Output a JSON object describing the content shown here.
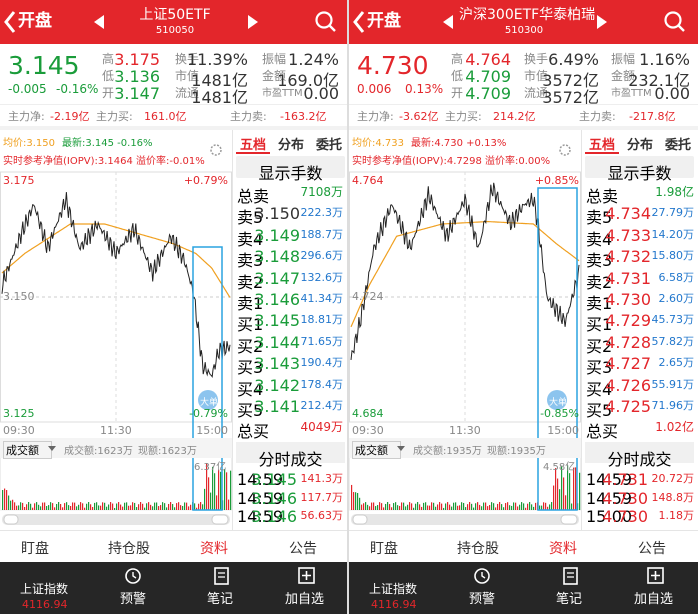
{
  "panels": [
    {
      "header": {
        "button": "开盘",
        "title": "上证50ETF",
        "code": "510050"
      },
      "quote": {
        "price": "3.145",
        "change": "-0.005",
        "percent": "-0.16%"
      },
      "stats": [
        [
          {
            "label": "高",
            "value": "3.175"
          },
          {
            "label": "换手",
            "value": "11.39%"
          },
          {
            "label": "振幅",
            "value": "1.24%"
          }
        ],
        [
          {
            "label": "低",
            "value": "3.136"
          },
          {
            "label": "市值",
            "value": "1481亿"
          },
          {
            "label": "金额",
            "value": "169.0亿"
          }
        ],
        [
          {
            "label": "开",
            "value": "3.147"
          },
          {
            "label": "流通",
            "value": "1481亿"
          },
          {
            "label": "市盈TTM",
            "value": "0.00"
          }
        ]
      ],
      "flows": [
        {
          "label": "主力净:",
          "value": "-2.19亿"
        },
        {
          "label": "主力买:",
          "value": "161.0亿"
        },
        {
          "label": "主力卖:",
          "value": "-163.2亿"
        }
      ],
      "info": {
        "avg": "均价:3.150",
        "latest": "最新:3.145 -0.16%",
        "iopv": "实时参考净值(IOPV):3.1464",
        "premium": "溢价率:-0.01%"
      },
      "chart_labels": {
        "high": "3.175",
        "high_pct": "+0.79%",
        "mid": "3.150",
        "low": "3.125",
        "low_pct": "-0.79%",
        "times": [
          "09:30",
          "11:30",
          "15:00"
        ],
        "badge": "大单"
      },
      "volume": {
        "selector": "成交额",
        "amount": "成交额:1623万",
        "current": "现额:1623万",
        "max": "6.37亿"
      },
      "tabs": [
        "五档",
        "分布",
        "委托"
      ],
      "toggle": "显示手数",
      "book": {
        "total_sell": {
          "label": "总卖",
          "value": "7108万"
        },
        "levels": [
          {
            "label": "卖5",
            "price": "3.150",
            "volume": "222.3万"
          },
          {
            "label": "卖4",
            "price": "3.149",
            "volume": "188.7万"
          },
          {
            "label": "卖3",
            "price": "3.148",
            "volume": "296.6万"
          },
          {
            "label": "卖2",
            "price": "3.147",
            "volume": "132.6万"
          },
          {
            "label": "卖1",
            "price": "3.146",
            "volume": "41.34万"
          },
          {
            "label": "买1",
            "price": "3.145",
            "volume": "18.81万"
          },
          {
            "label": "买2",
            "price": "3.144",
            "volume": "71.65万"
          },
          {
            "label": "买3",
            "price": "3.143",
            "volume": "190.4万"
          },
          {
            "label": "买4",
            "price": "3.142",
            "volume": "178.4万"
          },
          {
            "label": "买5",
            "price": "3.141",
            "volume": "212.4万"
          }
        ],
        "total_buy": {
          "label": "总买",
          "value": "4049万"
        }
      },
      "trades_title": "分时成交",
      "trades": [
        {
          "time": "14:59",
          "price": "3.145",
          "volume": "141.3万"
        },
        {
          "time": "14:59",
          "price": "3.146",
          "volume": "117.7万"
        },
        {
          "time": "14:59",
          "price": "3.146",
          "volume": "56.63万"
        }
      ]
    },
    {
      "header": {
        "button": "开盘",
        "title": "沪深300ETF华泰柏瑞",
        "code": "510300"
      },
      "quote": {
        "price": "4.730",
        "change": "0.006",
        "percent": "0.13%"
      },
      "stats": [
        [
          {
            "label": "高",
            "value": "4.764"
          },
          {
            "label": "换手",
            "value": "6.49%"
          },
          {
            "label": "振幅",
            "value": "1.16%"
          }
        ],
        [
          {
            "label": "低",
            "value": "4.709"
          },
          {
            "label": "市值",
            "value": "3572亿"
          },
          {
            "label": "金额",
            "value": "232.1亿"
          }
        ],
        [
          {
            "label": "开",
            "value": "4.709"
          },
          {
            "label": "流通",
            "value": "3572亿"
          },
          {
            "label": "市盈TTM",
            "value": "0.00"
          }
        ]
      ],
      "flows": [
        {
          "label": "主力净:",
          "value": "-3.62亿"
        },
        {
          "label": "主力买:",
          "value": "214.2亿"
        },
        {
          "label": "主力卖:",
          "value": "-217.8亿"
        }
      ],
      "info": {
        "avg": "均价:4.733",
        "latest": "最新:4.730 +0.13%",
        "iopv": "实时参考净值(IOPV):4.7298",
        "premium": "溢价率:0.00%"
      },
      "chart_labels": {
        "high": "4.764",
        "high_pct": "+0.85%",
        "mid": "4.724",
        "low": "4.684",
        "low_pct": "-0.85%",
        "times": [
          "09:30",
          "11:30",
          "15:00"
        ],
        "badge": "大单"
      },
      "volume": {
        "selector": "成交额",
        "amount": "成交额:1935万",
        "current": "现额:1935万",
        "max": "4.58亿"
      },
      "tabs": [
        "五档",
        "分布",
        "委托"
      ],
      "toggle": "显示手数",
      "book": {
        "total_sell": {
          "label": "总卖",
          "value": "1.98亿"
        },
        "levels": [
          {
            "label": "卖5",
            "price": "4.734",
            "volume": "27.79万"
          },
          {
            "label": "卖4",
            "price": "4.733",
            "volume": "14.20万"
          },
          {
            "label": "卖3",
            "price": "4.732",
            "volume": "15.80万"
          },
          {
            "label": "卖2",
            "price": "4.731",
            "volume": "6.58万"
          },
          {
            "label": "卖1",
            "price": "4.730",
            "volume": "2.60万"
          },
          {
            "label": "买1",
            "price": "4.729",
            "volume": "45.73万"
          },
          {
            "label": "买2",
            "price": "4.728",
            "volume": "57.82万"
          },
          {
            "label": "买3",
            "price": "4.727",
            "volume": "2.65万"
          },
          {
            "label": "买4",
            "price": "4.726",
            "volume": "55.91万"
          },
          {
            "label": "买5",
            "price": "4.725",
            "volume": "71.96万"
          }
        ],
        "total_buy": {
          "label": "总买",
          "value": "1.02亿"
        }
      },
      "trades_title": "分时成交",
      "trades": [
        {
          "time": "14:59",
          "price": "4.731",
          "volume": "20.72万"
        },
        {
          "time": "14:59",
          "price": "4.730",
          "volume": "148.8万"
        },
        {
          "time": "15:00",
          "price": "4.730",
          "volume": "1.18万"
        }
      ]
    }
  ],
  "bottom_tabs": [
    "盯盘",
    "持仓股",
    "资料",
    "公告"
  ],
  "bottom_bar": {
    "index_name": "上证指数",
    "index_value": "4116.94",
    "actions": [
      "预警",
      "笔记",
      "加自选"
    ]
  }
}
